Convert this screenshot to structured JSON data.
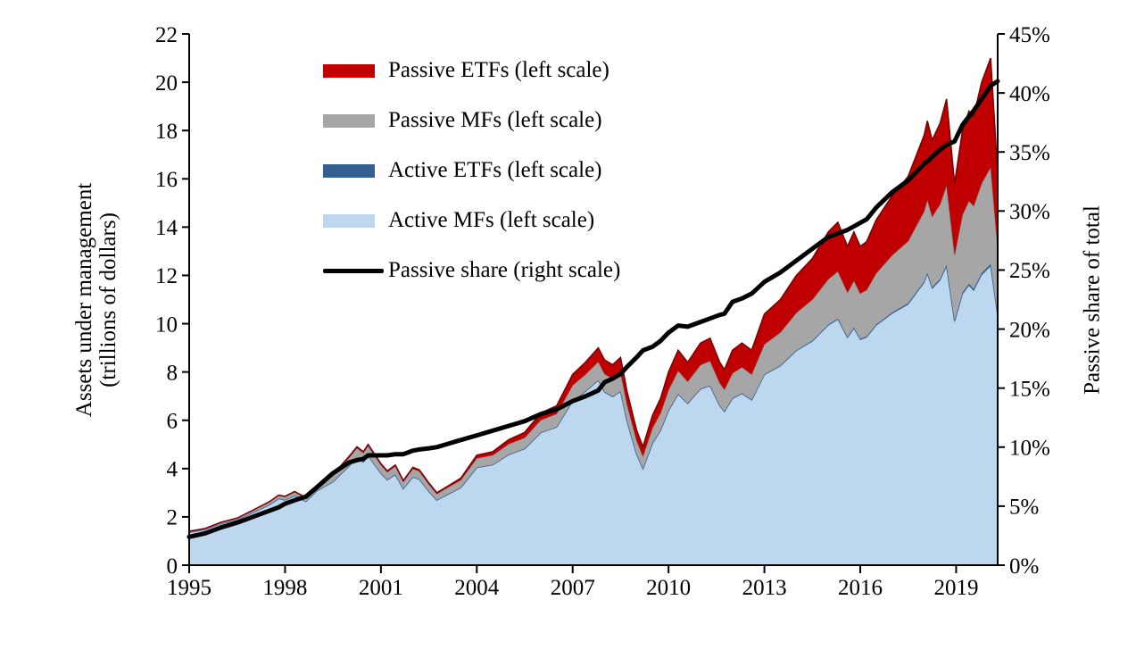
{
  "figure": {
    "left_axis_title_line1": "Assets under management",
    "left_axis_title_line2": "(trillions of dollars)",
    "right_axis_title": "Passive share of total"
  },
  "legend": {
    "items": [
      {
        "label": "Passive ETFs (left scale)",
        "color": "#c00000",
        "shape": "box"
      },
      {
        "label": "Passive MFs (left scale)",
        "color": "#a6a6a6",
        "shape": "box"
      },
      {
        "label": "Active ETFs (left scale)",
        "color": "#365f91",
        "shape": "box"
      },
      {
        "label": "Active MFs (left scale)",
        "color": "#bdd7ee",
        "shape": "box"
      },
      {
        "label": "Passive share (right scale)",
        "color": "#000000",
        "shape": "line"
      }
    ]
  },
  "chart_data": {
    "type": "area",
    "description": "Stacked areas of US equity fund assets (left scale, trillions) plus passive share line (right scale, percent), monthly Jan 1995 - Mar 2020",
    "xlim": [
      1995,
      2020.3
    ],
    "ylim_left": [
      0,
      22
    ],
    "ylim_right": [
      0,
      45
    ],
    "grid": false,
    "legend_position": "upper-left inside",
    "x_ticks": {
      "values": [
        1995,
        1998,
        2001,
        2004,
        2007,
        2010,
        2013,
        2016,
        2019
      ],
      "labels": [
        "1995",
        "1998",
        "2001",
        "2004",
        "2007",
        "2010",
        "2013",
        "2016",
        "2019"
      ]
    },
    "left_ticks": {
      "values": [
        0,
        2,
        4,
        6,
        8,
        10,
        12,
        14,
        16,
        18,
        20,
        22
      ],
      "labels": [
        "0",
        "2",
        "4",
        "6",
        "8",
        "10",
        "12",
        "14",
        "16",
        "18",
        "20",
        "22"
      ]
    },
    "right_ticks": {
      "values": [
        0,
        5,
        10,
        15,
        20,
        25,
        30,
        35,
        40,
        45
      ],
      "labels": [
        "0%",
        "5%",
        "10%",
        "15%",
        "20%",
        "25%",
        "30%",
        "35%",
        "40%",
        "45%"
      ]
    },
    "x_years": [
      1995,
      1995.5,
      1996,
      1996.5,
      1997,
      1997.5,
      1997.8,
      1998,
      1998.3,
      1998.65,
      1999,
      1999.5,
      2000,
      2000.25,
      2000.45,
      2000.6,
      2000.8,
      2001,
      2001.2,
      2001.45,
      2001.7,
      2002,
      2002.2,
      2002.5,
      2002.75,
      2003,
      2003.5,
      2004,
      2004.5,
      2005,
      2005.5,
      2006,
      2006.5,
      2007,
      2007.4,
      2007.8,
      2008,
      2008.25,
      2008.5,
      2008.7,
      2009,
      2009.2,
      2009.5,
      2009.75,
      2010,
      2010.3,
      2010.6,
      2011,
      2011.3,
      2011.6,
      2011.75,
      2012,
      2012.3,
      2012.6,
      2013,
      2013.5,
      2014,
      2014.5,
      2015,
      2015.3,
      2015.6,
      2015.8,
      2016,
      2016.2,
      2016.5,
      2017,
      2017.5,
      2018,
      2018.1,
      2018.25,
      2018.5,
      2018.7,
      2018.95,
      2019.2,
      2019.4,
      2019.55,
      2019.8,
      2020.08,
      2020.3
    ],
    "stack_order": [
      "active_mf",
      "active_etf",
      "passive_mf",
      "passive_etf"
    ],
    "series": {
      "active_mf": {
        "name": "Active MFs",
        "axis": "left",
        "fill": "#bdd7ee",
        "edge": "#9dc3e6",
        "values": [
          1.365,
          1.478,
          1.722,
          1.879,
          2.186,
          2.498,
          2.757,
          2.701,
          2.881,
          2.637,
          3.081,
          3.457,
          4.107,
          4.463,
          4.276,
          4.534,
          4.171,
          3.808,
          3.536,
          3.759,
          3.17,
          3.656,
          3.562,
          3.062,
          2.699,
          2.872,
          3.216,
          4.047,
          4.161,
          4.582,
          4.824,
          5.488,
          5.722,
          6.794,
          7.189,
          7.658,
          7.172,
          6.979,
          7.197,
          5.98,
          4.604,
          3.998,
          5.041,
          5.575,
          6.408,
          7.075,
          6.685,
          7.285,
          7.414,
          6.598,
          6.354,
          6.892,
          7.097,
          6.828,
          7.876,
          8.242,
          8.871,
          9.26,
          9.924,
          10.168,
          9.409,
          9.796,
          9.328,
          9.429,
          9.919,
          10.413,
          10.793,
          11.683,
          12.041,
          11.443,
          11.788,
          12.357,
          10.058,
          11.208,
          11.574,
          11.355,
          12.01,
          12.379,
          10.298
        ]
      },
      "active_etf": {
        "name": "Active ETFs",
        "axis": "left",
        "fill": "#365f91",
        "edge": "#365f91",
        "values": [
          0.001,
          0.001,
          0.001,
          0.001,
          0.001,
          0.001,
          0.001,
          0.001,
          0.001,
          0.001,
          0.001,
          0.001,
          0.001,
          0.001,
          0.001,
          0.001,
          0.001,
          0.001,
          0.001,
          0.001,
          0.001,
          0.001,
          0.001,
          0.001,
          0.001,
          0.002,
          0.002,
          0.002,
          0.003,
          0.004,
          0.005,
          0.006,
          0.007,
          0.008,
          0.01,
          0.01,
          0.01,
          0.01,
          0.01,
          0.01,
          0.01,
          0.01,
          0.012,
          0.014,
          0.016,
          0.018,
          0.018,
          0.02,
          0.021,
          0.021,
          0.021,
          0.023,
          0.024,
          0.025,
          0.028,
          0.03,
          0.033,
          0.036,
          0.04,
          0.042,
          0.042,
          0.043,
          0.044,
          0.045,
          0.048,
          0.052,
          0.058,
          0.065,
          0.066,
          0.067,
          0.07,
          0.072,
          0.07,
          0.078,
          0.082,
          0.084,
          0.09,
          0.095,
          0.08
        ]
      },
      "passive_mf": {
        "name": "Passive MFs",
        "axis": "left",
        "fill": "#a6a6a6",
        "edge": "#7f7f7f",
        "values": [
          0.032,
          0.038,
          0.053,
          0.065,
          0.086,
          0.113,
          0.131,
          0.136,
          0.155,
          0.147,
          0.196,
          0.26,
          0.345,
          0.384,
          0.372,
          0.409,
          0.372,
          0.34,
          0.316,
          0.339,
          0.283,
          0.334,
          0.329,
          0.283,
          0.252,
          0.271,
          0.306,
          0.376,
          0.391,
          0.43,
          0.45,
          0.516,
          0.54,
          0.648,
          0.697,
          0.759,
          0.738,
          0.734,
          0.766,
          0.666,
          0.552,
          0.5,
          0.631,
          0.708,
          0.835,
          0.958,
          0.899,
          0.985,
          1.022,
          0.926,
          0.897,
          1.032,
          1.081,
          1.044,
          1.248,
          1.364,
          1.548,
          1.702,
          1.88,
          1.955,
          1.837,
          1.941,
          1.876,
          1.924,
          2.123,
          2.369,
          2.572,
          2.905,
          3.021,
          2.923,
          3.092,
          3.298,
          2.723,
          3.223,
          3.429,
          3.437,
          3.713,
          4.007,
          2.736
        ]
      },
      "passive_etf": {
        "name": "Passive ETFs",
        "axis": "left",
        "fill": "#c00000",
        "edge": "#7f0000",
        "values": [
          0.002,
          0.003,
          0.004,
          0.005,
          0.007,
          0.008,
          0.011,
          0.012,
          0.013,
          0.015,
          0.022,
          0.032,
          0.047,
          0.052,
          0.051,
          0.056,
          0.056,
          0.051,
          0.047,
          0.051,
          0.046,
          0.059,
          0.058,
          0.054,
          0.048,
          0.055,
          0.076,
          0.125,
          0.145,
          0.184,
          0.221,
          0.29,
          0.331,
          0.45,
          0.504,
          0.573,
          0.58,
          0.577,
          0.627,
          0.544,
          0.434,
          0.392,
          0.516,
          0.603,
          0.741,
          0.849,
          0.798,
          0.91,
          0.943,
          0.855,
          0.828,
          0.953,
          0.998,
          1.003,
          1.248,
          1.364,
          1.548,
          1.702,
          1.956,
          2.035,
          1.912,
          2.02,
          1.952,
          2.002,
          2.21,
          2.466,
          2.677,
          3.147,
          3.272,
          3.167,
          3.35,
          3.573,
          2.949,
          3.491,
          3.715,
          3.724,
          4.187,
          4.519,
          3.086
        ]
      },
      "passive_share": {
        "name": "Passive share",
        "axis": "right",
        "color": "#000000",
        "line_width": 5,
        "values_pct": [
          2.4,
          2.7,
          3.2,
          3.6,
          4.1,
          4.6,
          4.9,
          5.2,
          5.5,
          5.8,
          6.6,
          7.8,
          8.7,
          8.9,
          9.0,
          9.3,
          9.3,
          9.3,
          9.3,
          9.4,
          9.4,
          9.7,
          9.8,
          9.9,
          10.0,
          10.2,
          10.6,
          11.0,
          11.4,
          11.8,
          12.2,
          12.8,
          13.2,
          13.9,
          14.3,
          14.8,
          15.5,
          15.8,
          16.2,
          16.8,
          17.6,
          18.2,
          18.5,
          19.0,
          19.7,
          20.3,
          20.2,
          20.6,
          20.9,
          21.2,
          21.3,
          22.3,
          22.6,
          23.0,
          24.0,
          24.8,
          25.8,
          26.8,
          27.8,
          28.1,
          28.4,
          28.7,
          29.0,
          29.3,
          30.3,
          31.6,
          32.6,
          34.0,
          34.2,
          34.6,
          35.2,
          35.6,
          35.9,
          37.3,
          38.0,
          38.5,
          39.5,
          40.6,
          41.0
        ]
      }
    }
  }
}
